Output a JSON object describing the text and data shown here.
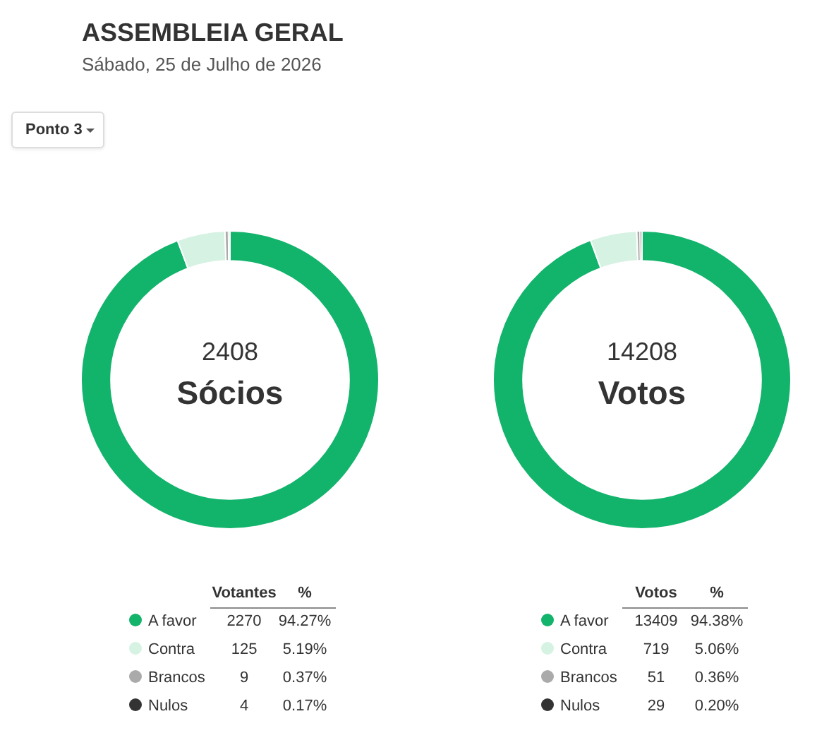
{
  "chart_data": [
    {
      "type": "other",
      "title": "ASSEMBLEIA GERAL",
      "subtitle": "Sábado, 25 de Julho de 2026",
      "annotations": [
        "Ponto 3"
      ]
    },
    {
      "type": "donut",
      "title": "Sócios",
      "categories": [
        "A favor",
        "Contra",
        "Brancos",
        "Nulos"
      ],
      "values": [
        2270,
        125,
        9,
        4
      ],
      "colors": [
        "#12b36b",
        "#d5f2e3",
        "#aaaaaa",
        "#333333"
      ],
      "data_labels": true,
      "legend": "bottom",
      "legend_title": "Votantes",
      "annotations": [
        "2408",
        "%",
        "94.27%",
        "5.19%",
        "0.37%",
        "0.17%"
      ]
    },
    {
      "type": "donut",
      "title": "Votos",
      "categories": [
        "A favor",
        "Contra",
        "Brancos",
        "Nulos"
      ],
      "values": [
        13409,
        719,
        51,
        29
      ],
      "colors": [
        "#12b36b",
        "#d5f2e3",
        "#aaaaaa",
        "#333333"
      ],
      "data_labels": true,
      "legend": "bottom",
      "legend_title": "Votos",
      "annotations": [
        "14208",
        "%",
        "94.38%",
        "5.06%",
        "0.36%",
        "0.20%"
      ]
    }
  ]
}
